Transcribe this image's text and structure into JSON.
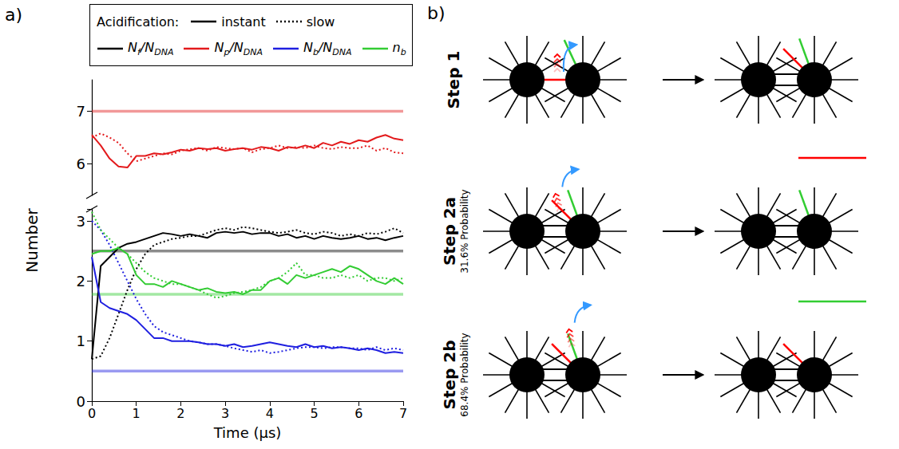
{
  "chart_data": [
    {
      "panel": "a)",
      "type": "line",
      "legend": "top",
      "legend_title": "Acidification:",
      "acidification": [
        {
          "label": "instant",
          "line_style": "solid"
        },
        {
          "label": "slow",
          "line_style": "dotted"
        }
      ],
      "legend_entries": [
        {
          "name": "Nf/NDNA",
          "color": "#000000"
        },
        {
          "name": "Np/NDNA",
          "color": "#e31a1c"
        },
        {
          "name": "Nb/NDNA",
          "color": "#1f1fe0"
        },
        {
          "name": "nb",
          "color": "#33cc33"
        }
      ],
      "grid": false,
      "tick_labels": "y",
      "x": [
        0,
        0.2,
        0.4,
        0.6,
        0.8,
        1.0,
        1.2,
        1.4,
        1.6,
        1.8,
        2.0,
        2.2,
        2.4,
        2.6,
        2.8,
        3.0,
        3.2,
        3.4,
        3.6,
        3.8,
        4.0,
        4.2,
        4.4,
        4.6,
        4.8,
        5.0,
        5.2,
        5.4,
        5.6,
        5.8,
        6.0,
        6.2,
        6.4,
        6.6,
        6.8,
        7.0
      ],
      "xlim": [
        0,
        7
      ],
      "ylim": [
        5.4,
        7.6
      ],
      "yticks": [
        6,
        7
      ],
      "reference_lines": [
        {
          "value": 7,
          "color": "#e31a1c"
        }
      ],
      "series": [
        {
          "name": "Np/NDNA",
          "color": "#e31a1c",
          "line_style": "solid",
          "values": [
            6.55,
            6.35,
            6.1,
            5.95,
            5.93,
            6.15,
            6.15,
            6.2,
            6.18,
            6.22,
            6.27,
            6.25,
            6.3,
            6.28,
            6.3,
            6.25,
            6.28,
            6.3,
            6.27,
            6.32,
            6.3,
            6.25,
            6.32,
            6.3,
            6.35,
            6.3,
            6.4,
            6.35,
            6.42,
            6.38,
            6.45,
            6.42,
            6.5,
            6.55,
            6.48,
            6.45
          ]
        },
        {
          "name": "Np/NDNA",
          "color": "#e31a1c",
          "line_style": "dotted",
          "values": [
            6.5,
            6.58,
            6.5,
            6.4,
            6.2,
            6.05,
            6.1,
            6.15,
            6.2,
            6.18,
            6.25,
            6.28,
            6.3,
            6.25,
            6.32,
            6.3,
            6.28,
            6.3,
            6.22,
            6.28,
            6.3,
            6.35,
            6.3,
            6.32,
            6.3,
            6.35,
            6.3,
            6.28,
            6.32,
            6.3,
            6.3,
            6.35,
            6.25,
            6.3,
            6.22,
            6.2
          ]
        }
      ]
    },
    {
      "type": "line",
      "xlabel": "Time (μs)",
      "ylabel": "Number",
      "grid": false,
      "x": [
        0,
        0.2,
        0.4,
        0.6,
        0.8,
        1.0,
        1.2,
        1.4,
        1.6,
        1.8,
        2.0,
        2.2,
        2.4,
        2.6,
        2.8,
        3.0,
        3.2,
        3.4,
        3.6,
        3.8,
        4.0,
        4.2,
        4.4,
        4.6,
        4.8,
        5.0,
        5.2,
        5.4,
        5.6,
        5.8,
        6.0,
        6.2,
        6.4,
        6.6,
        6.8,
        7.0
      ],
      "xlim": [
        0,
        7
      ],
      "xticks": [
        0,
        1,
        2,
        3,
        4,
        5,
        6,
        7
      ],
      "ylim": [
        0,
        3.2
      ],
      "yticks": [
        0,
        1,
        2,
        3
      ],
      "reference_lines": [
        {
          "value": 2.5,
          "color": "#000000"
        },
        {
          "value": 1.78,
          "color": "#33cc33"
        },
        {
          "value": 0.5,
          "color": "#1f1fe0"
        }
      ],
      "series": [
        {
          "name": "Nf/NDNA",
          "color": "#000000",
          "line_style": "solid",
          "values": [
            0.7,
            2.25,
            2.4,
            2.55,
            2.62,
            2.65,
            2.7,
            2.75,
            2.8,
            2.78,
            2.75,
            2.78,
            2.75,
            2.72,
            2.8,
            2.82,
            2.8,
            2.82,
            2.78,
            2.8,
            2.8,
            2.75,
            2.78,
            2.72,
            2.75,
            2.7,
            2.75,
            2.72,
            2.7,
            2.72,
            2.75,
            2.7,
            2.72,
            2.68,
            2.72,
            2.75
          ]
        },
        {
          "name": "Nf/NDNA",
          "color": "#000000",
          "line_style": "dotted",
          "values": [
            0.7,
            0.75,
            1.05,
            1.45,
            1.85,
            2.2,
            2.45,
            2.6,
            2.65,
            2.7,
            2.72,
            2.75,
            2.75,
            2.8,
            2.85,
            2.88,
            2.85,
            2.9,
            2.88,
            2.85,
            2.82,
            2.8,
            2.82,
            2.85,
            2.8,
            2.78,
            2.82,
            2.8,
            2.75,
            2.78,
            2.75,
            2.8,
            2.78,
            2.82,
            2.88,
            2.8
          ]
        },
        {
          "name": "Nb/NDNA",
          "color": "#1f1fe0",
          "line_style": "solid",
          "values": [
            2.4,
            1.65,
            1.55,
            1.5,
            1.45,
            1.35,
            1.2,
            1.05,
            1.05,
            1.0,
            1.0,
            1.0,
            0.98,
            0.95,
            0.95,
            0.92,
            0.95,
            0.9,
            0.92,
            0.95,
            0.98,
            0.95,
            0.92,
            0.9,
            0.95,
            0.9,
            0.92,
            0.88,
            0.9,
            0.88,
            0.85,
            0.88,
            0.85,
            0.8,
            0.82,
            0.8
          ]
        },
        {
          "name": "Nb/NDNA",
          "color": "#1f1fe0",
          "line_style": "dotted",
          "values": [
            3.0,
            2.85,
            2.6,
            2.3,
            2.0,
            1.7,
            1.45,
            1.25,
            1.15,
            1.1,
            1.05,
            1.0,
            0.98,
            0.95,
            0.95,
            0.92,
            0.88,
            0.85,
            0.82,
            0.85,
            0.8,
            0.82,
            0.85,
            0.88,
            0.9,
            0.9,
            0.88,
            0.9,
            0.9,
            0.88,
            0.88,
            0.85,
            0.9,
            0.85,
            0.88,
            0.85
          ]
        },
        {
          "name": "nb",
          "color": "#33cc33",
          "line_style": "solid",
          "values": [
            2.45,
            2.5,
            2.5,
            2.55,
            2.45,
            2.1,
            1.95,
            1.95,
            1.9,
            2.0,
            1.95,
            1.9,
            1.85,
            1.88,
            1.82,
            1.8,
            1.82,
            1.78,
            1.85,
            1.85,
            2.0,
            2.05,
            1.95,
            2.1,
            2.05,
            2.1,
            2.15,
            2.2,
            2.15,
            2.25,
            2.2,
            2.1,
            2.0,
            1.95,
            2.05,
            1.95
          ]
        },
        {
          "name": "nb",
          "color": "#33cc33",
          "line_style": "dotted",
          "values": [
            3.15,
            2.85,
            2.7,
            2.55,
            2.45,
            2.3,
            2.15,
            2.05,
            2.0,
            1.95,
            1.95,
            1.9,
            1.85,
            1.78,
            1.72,
            1.75,
            1.8,
            1.82,
            1.85,
            1.9,
            2.0,
            2.05,
            2.15,
            2.3,
            2.1,
            2.1,
            2.05,
            2.05,
            2.1,
            2.05,
            2.1,
            2.0,
            2.05,
            2.05,
            2.0,
            2.05
          ]
        }
      ]
    }
  ],
  "diagram": {
    "panel": "b)",
    "steps": [
      {
        "label": "Step 1"
      },
      {
        "label": "Step 2a",
        "sublabel": "31.6% Probability"
      },
      {
        "label": "Step 2b",
        "sublabel": "68.4% Probability"
      }
    ]
  }
}
